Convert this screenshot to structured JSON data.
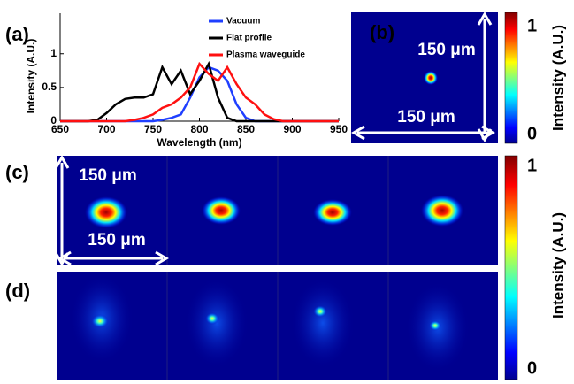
{
  "chart_data": {
    "type": "line",
    "panel_label": "(a)",
    "xlabel": "Wavelength (nm)",
    "ylabel": "Intensity (A.U.)",
    "x": [
      650,
      660,
      670,
      680,
      690,
      700,
      710,
      720,
      730,
      740,
      750,
      760,
      770,
      780,
      790,
      800,
      810,
      820,
      830,
      840,
      850,
      860,
      870,
      880,
      890,
      900,
      910,
      920,
      930,
      940,
      950
    ],
    "series": [
      {
        "name": "Vacuum",
        "color": "#1f3fff",
        "values": [
          0,
          0,
          0,
          0,
          0,
          0,
          0,
          0,
          0,
          0,
          0,
          0.02,
          0.05,
          0.1,
          0.35,
          0.65,
          0.8,
          0.75,
          0.6,
          0.25,
          0.05,
          0,
          0,
          0,
          0,
          0,
          0,
          0,
          0,
          0,
          0
        ]
      },
      {
        "name": "Flat profile",
        "color": "#000000",
        "values": [
          0,
          0,
          0,
          0,
          0.02,
          0.12,
          0.25,
          0.33,
          0.35,
          0.35,
          0.4,
          0.8,
          0.55,
          0.75,
          0.4,
          0.6,
          0.85,
          0.35,
          0.05,
          0,
          0,
          0,
          0,
          0,
          0,
          0,
          0,
          0,
          0,
          0,
          0
        ]
      },
      {
        "name": "Plasma waveguide",
        "color": "#ff1010",
        "values": [
          0,
          0,
          0,
          0,
          0,
          0,
          0,
          0,
          0.02,
          0.05,
          0.1,
          0.2,
          0.25,
          0.35,
          0.5,
          0.85,
          0.7,
          0.6,
          0.8,
          0.55,
          0.35,
          0.25,
          0.1,
          0.03,
          0,
          0,
          0,
          0,
          0,
          0,
          0
        ]
      }
    ],
    "xlim": [
      650,
      950
    ],
    "xticks": [
      650,
      700,
      750,
      800,
      850,
      900,
      950
    ],
    "ylim": [
      0,
      1.6
    ],
    "yticks": [
      0,
      0.5,
      1
    ]
  },
  "panels": {
    "b": {
      "label": "(b)",
      "scale_v": "150 μm",
      "scale_h": "150 μm"
    },
    "c": {
      "label": "(c)",
      "scale_v": "150 μm",
      "scale_h": "150 μm"
    },
    "d": {
      "label": "(d)"
    }
  },
  "colorbars": [
    {
      "label": "Intensity (A.U.)",
      "ticks": [
        1,
        0
      ]
    },
    {
      "label": "Intensity (A.U.)",
      "ticks": [
        1,
        0
      ]
    }
  ]
}
